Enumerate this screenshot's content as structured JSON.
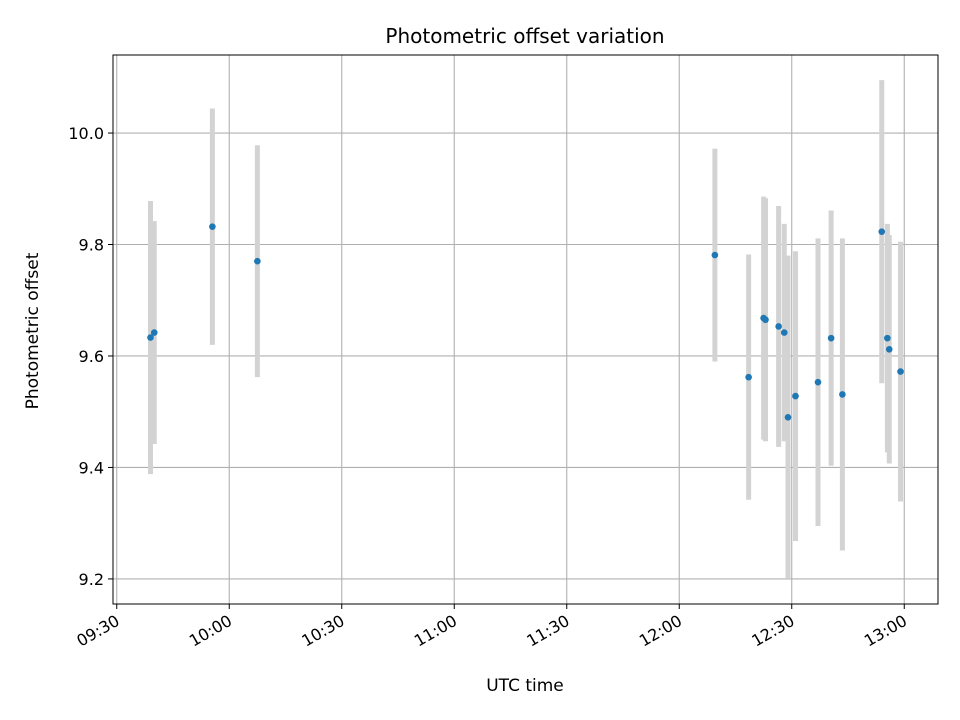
{
  "chart_data": {
    "type": "scatter",
    "title": "Photometric offset variation",
    "xlabel": "UTC time",
    "ylabel": "Photometric offset",
    "grid": true,
    "xlim": [
      "09:29",
      "13:09"
    ],
    "ylim": [
      9.155,
      10.14
    ],
    "x_ticks": [
      "09:30",
      "10:00",
      "10:30",
      "11:00",
      "11:30",
      "12:00",
      "12:30",
      "13:00"
    ],
    "y_ticks": [
      "9.2",
      "9.4",
      "9.6",
      "9.8",
      "10.0"
    ],
    "series_color": "#1f77b4",
    "errorbar_color": "#d3d3d3",
    "points": [
      {
        "x": "09:39:00",
        "y": 9.633,
        "err": 0.245
      },
      {
        "x": "09:40:00",
        "y": 9.642,
        "err": 0.2
      },
      {
        "x": "09:55:30",
        "y": 9.832,
        "err": 0.212
      },
      {
        "x": "10:07:30",
        "y": 9.77,
        "err": 0.208
      },
      {
        "x": "12:09:30",
        "y": 9.781,
        "err": 0.191
      },
      {
        "x": "12:18:30",
        "y": 9.562,
        "err": 0.22
      },
      {
        "x": "12:22:30",
        "y": 9.668,
        "err": 0.218
      },
      {
        "x": "12:23:00",
        "y": 9.665,
        "err": 0.218
      },
      {
        "x": "12:26:30",
        "y": 9.653,
        "err": 0.216
      },
      {
        "x": "12:28:00",
        "y": 9.642,
        "err": 0.195
      },
      {
        "x": "12:29:00",
        "y": 9.49,
        "err": 0.29
      },
      {
        "x": "12:31:00",
        "y": 9.528,
        "err": 0.26
      },
      {
        "x": "12:37:00",
        "y": 9.553,
        "err": 0.258
      },
      {
        "x": "12:40:30",
        "y": 9.632,
        "err": 0.229
      },
      {
        "x": "12:43:30",
        "y": 9.531,
        "err": 0.28
      },
      {
        "x": "12:54:00",
        "y": 9.823,
        "err": 0.272
      },
      {
        "x": "12:55:30",
        "y": 9.632,
        "err": 0.205
      },
      {
        "x": "12:56:00",
        "y": 9.612,
        "err": 0.205
      },
      {
        "x": "12:59:00",
        "y": 9.572,
        "err": 0.233
      }
    ]
  }
}
